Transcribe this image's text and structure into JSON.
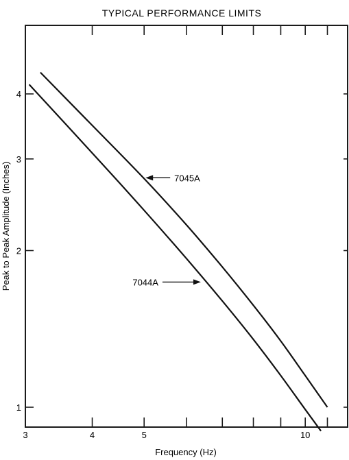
{
  "chart_data": {
    "type": "line",
    "title": "TYPICAL PERFORMANCE LIMITS",
    "xlabel": "Frequency (Hz)",
    "ylabel": "Peak to Peak Amplitude (Inches)",
    "x_scale": "log",
    "y_scale": "log",
    "xlim": [
      3,
      12
    ],
    "ylim": [
      0.9,
      4.8
    ],
    "x_ticks": [
      3,
      4,
      5,
      10
    ],
    "y_ticks": [
      1,
      2,
      3,
      4
    ],
    "grid": false,
    "series": [
      {
        "name": "7045A",
        "x": [
          3.2,
          4,
          5,
          6,
          7,
          8,
          9,
          10,
          11
        ],
        "y": [
          4.4,
          3.48,
          2.75,
          2.24,
          1.86,
          1.57,
          1.34,
          1.15,
          1.0
        ]
      },
      {
        "name": "7044A",
        "x": [
          3.05,
          4,
          5,
          6,
          7,
          8,
          9,
          10,
          10.7
        ],
        "y": [
          4.17,
          3.08,
          2.39,
          1.93,
          1.6,
          1.35,
          1.15,
          0.99,
          0.9
        ]
      }
    ],
    "annotations": [
      {
        "text": "7045A",
        "series": "7045A",
        "x": 5.0,
        "y": 2.76
      },
      {
        "text": "7044A",
        "series": "7044A",
        "x": 6.42,
        "y": 1.74
      }
    ]
  }
}
